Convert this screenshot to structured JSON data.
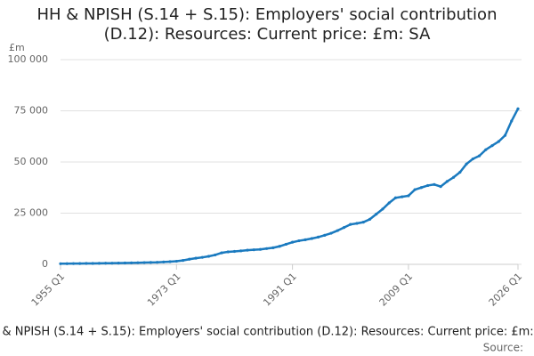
{
  "chart_data": {
    "type": "line",
    "title": "HH & NPISH (S.14 + S.15): Employers' social contribution (D.12): Resources: Current price: £m: SA",
    "y_unit": "£m",
    "source_label": "Source:",
    "x": [
      "1955 Q1",
      "1956 Q1",
      "1957 Q1",
      "1958 Q1",
      "1959 Q1",
      "1960 Q1",
      "1961 Q1",
      "1962 Q1",
      "1963 Q1",
      "1964 Q1",
      "1965 Q1",
      "1966 Q1",
      "1967 Q1",
      "1968 Q1",
      "1969 Q1",
      "1970 Q1",
      "1971 Q1",
      "1972 Q1",
      "1973 Q1",
      "1974 Q1",
      "1975 Q1",
      "1976 Q1",
      "1977 Q1",
      "1978 Q1",
      "1979 Q1",
      "1980 Q1",
      "1981 Q1",
      "1982 Q1",
      "1983 Q1",
      "1984 Q1",
      "1985 Q1",
      "1986 Q1",
      "1987 Q1",
      "1988 Q1",
      "1989 Q1",
      "1990 Q1",
      "1991 Q1",
      "1992 Q1",
      "1993 Q1",
      "1994 Q1",
      "1995 Q1",
      "1996 Q1",
      "1997 Q1",
      "1998 Q1",
      "1999 Q1",
      "2000 Q1",
      "2001 Q1",
      "2002 Q1",
      "2003 Q1",
      "2004 Q1",
      "2005 Q1",
      "2006 Q1",
      "2007 Q1",
      "2008 Q1",
      "2009 Q1",
      "2010 Q1",
      "2011 Q1",
      "2012 Q1",
      "2013 Q1",
      "2014 Q1",
      "2015 Q1",
      "2016 Q1",
      "2017 Q1",
      "2018 Q1",
      "2019 Q1",
      "2020 Q1",
      "2021 Q1",
      "2022 Q1",
      "2023 Q1",
      "2024 Q1",
      "2025 Q1",
      "2026 Q1"
    ],
    "series": [
      {
        "color": "#1a7abf",
        "values": [
          300,
          330,
          360,
          390,
          420,
          450,
          490,
          530,
          570,
          610,
          660,
          720,
          780,
          850,
          920,
          1000,
          1150,
          1300,
          1500,
          1900,
          2500,
          3000,
          3400,
          3900,
          4600,
          5600,
          6100,
          6300,
          6600,
          6900,
          7100,
          7300,
          7700,
          8100,
          8800,
          9800,
          10800,
          11500,
          12000,
          12600,
          13300,
          14200,
          15200,
          16500,
          18000,
          19500,
          20000,
          20600,
          22000,
          24500,
          27000,
          30000,
          32500,
          33000,
          33500,
          36500,
          37500,
          38500,
          39000,
          38000,
          40500,
          42500,
          45000,
          49000,
          51500,
          53000,
          56000,
          58000,
          60000,
          63000,
          70000,
          76000
        ]
      }
    ],
    "xticks": [
      "1955 Q1",
      "1973 Q1",
      "1991 Q1",
      "2009 Q1",
      "2026 Q1"
    ],
    "ylim": [
      0,
      100000
    ],
    "yticks": [
      0,
      {
        "value": 25000,
        "label": "25 000"
      },
      {
        "value": 50000,
        "label": "50 000"
      },
      {
        "value": 75000,
        "label": "75 000"
      },
      {
        "value": 100000,
        "label": "100 000"
      }
    ],
    "grid": true
  }
}
